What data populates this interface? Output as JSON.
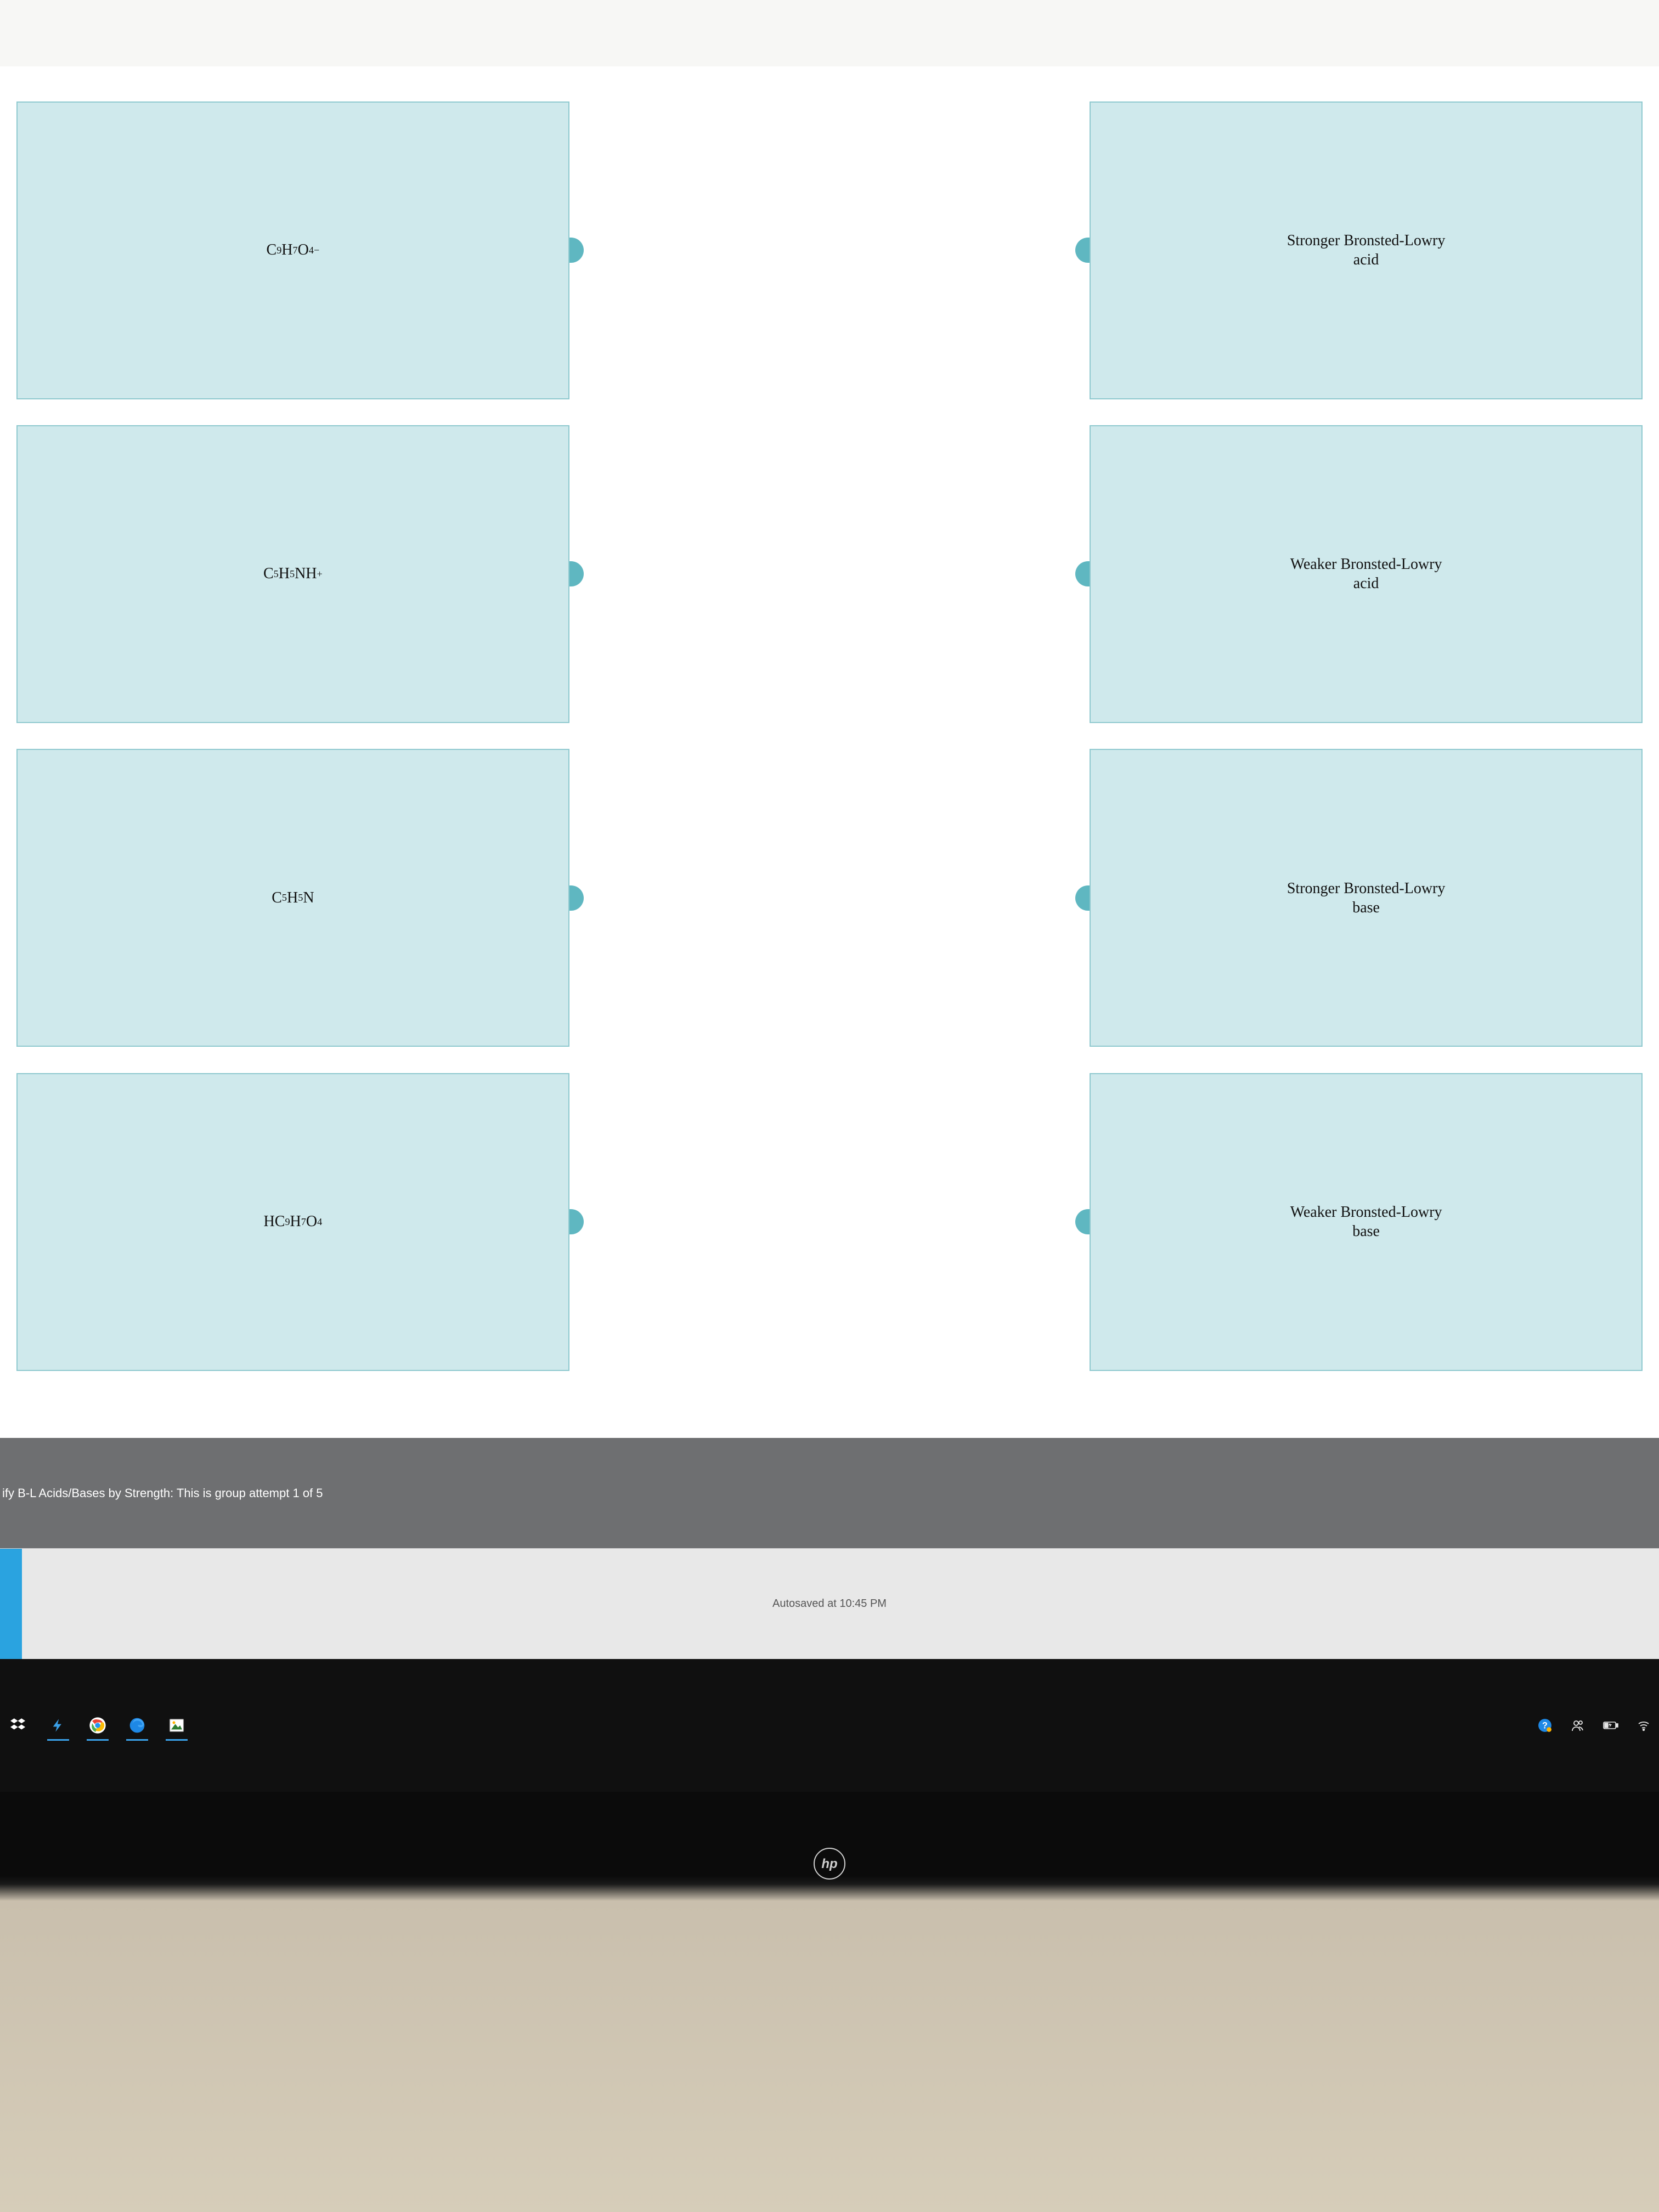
{
  "colors": {
    "box_fill": "#cfe9ec",
    "box_border": "#8fc9cf",
    "connector_tab": "#5fb7c1",
    "page_bg": "#ffffff",
    "banner_bg": "#6e6f71",
    "banner_text": "#ffffff",
    "autosave_bg": "#e8e8e8",
    "autosave_text": "#555555",
    "autosave_chip": "#2aa3e0",
    "taskbar_bg": "#101010",
    "taskbar_active_underline": "#3aa0e8"
  },
  "typography": {
    "box_font_family": "Times New Roman",
    "box_font_size_pt": 21,
    "ui_font_family": "Arial",
    "banner_font_size_pt": 16,
    "autosave_font_size_pt": 15
  },
  "matching": {
    "left": [
      {
        "formula_html": "C<sub>9</sub>H<sub>7</sub>O<sub>4</sub><sup>−</sup>"
      },
      {
        "formula_html": "C<sub>5</sub>H<sub>5</sub>NH<sup>+</sup>"
      },
      {
        "formula_html": "C<sub>5</sub>H<sub>5</sub>N"
      },
      {
        "formula_html": "HC<sub>9</sub>H<sub>7</sub>O<sub>4</sub>"
      }
    ],
    "right": [
      {
        "label_line1": "Stronger Bronsted-Lowry",
        "label_line2": "acid"
      },
      {
        "label_line1": "Weaker Bronsted-Lowry",
        "label_line2": "acid"
      },
      {
        "label_line1": "Stronger Bronsted-Lowry",
        "label_line2": "base"
      },
      {
        "label_line1": "Weaker Bronsted-Lowry",
        "label_line2": "base"
      }
    ]
  },
  "banner_text": "ify B-L Acids/Bases by Strength: This is group attempt 1 of 5",
  "autosave_text": "Autosaved at 10:45 PM",
  "taskbar": {
    "apps": [
      {
        "name": "dropbox-icon",
        "active": false
      },
      {
        "name": "lightning-icon",
        "active": true
      },
      {
        "name": "chrome-icon",
        "active": true
      },
      {
        "name": "edge-icon",
        "active": true
      },
      {
        "name": "photos-icon",
        "active": true
      }
    ],
    "tray": [
      {
        "name": "help-icon"
      },
      {
        "name": "people-icon"
      },
      {
        "name": "battery-icon"
      },
      {
        "name": "wifi-icon"
      }
    ]
  },
  "laptop_brand": "hp"
}
